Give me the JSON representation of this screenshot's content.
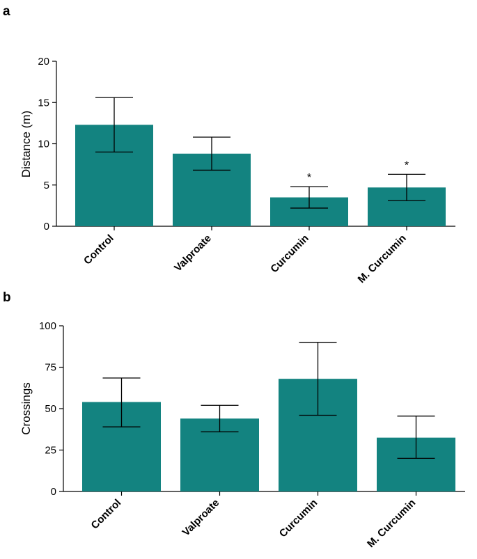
{
  "chart_data": [
    {
      "type": "bar",
      "panel_label": "a",
      "title": "",
      "xlabel": "",
      "ylabel": "Distance (m)",
      "categories": [
        "Control",
        "Valproate",
        "Curcumin",
        "M. Curcumin"
      ],
      "values": [
        12.3,
        8.8,
        3.5,
        4.7
      ],
      "error_low": [
        9.0,
        6.8,
        2.2,
        3.1
      ],
      "error_high": [
        15.6,
        10.8,
        4.8,
        6.3
      ],
      "annotations": [
        "",
        "",
        "*",
        "*"
      ],
      "ylim": [
        0,
        20
      ],
      "yticks": [
        0,
        5,
        10,
        15,
        20
      ],
      "ytick_labels": [
        "0",
        "5",
        "10",
        "15",
        "20"
      ],
      "bar_color": "#138380",
      "grid": false
    },
    {
      "type": "bar",
      "panel_label": "b",
      "title": "",
      "xlabel": "",
      "ylabel": "Crossings",
      "categories": [
        "Control",
        "Valproate",
        "Curcumin",
        "M. Curcumin"
      ],
      "values": [
        54,
        44,
        68,
        32.5
      ],
      "error_low": [
        39,
        36,
        46,
        20
      ],
      "error_high": [
        68.5,
        52,
        90,
        45.5
      ],
      "annotations": [
        "",
        "",
        "",
        ""
      ],
      "ylim": [
        0,
        100
      ],
      "yticks": [
        0,
        25,
        50,
        75,
        100
      ],
      "ytick_labels": [
        "0",
        "25",
        "50",
        "75",
        "100"
      ],
      "bar_color": "#138380",
      "grid": false
    }
  ]
}
